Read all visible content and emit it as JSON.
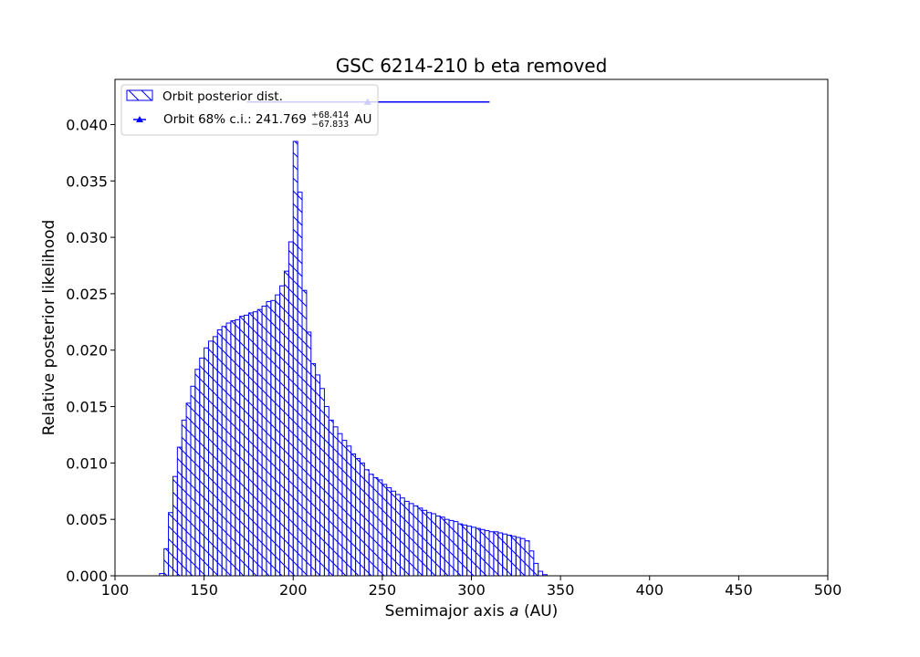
{
  "chart_data": {
    "type": "bar",
    "title": "GSC 6214-210 b eta removed",
    "xlabel_prefix": "Semimajor axis ",
    "xlabel_var": "a",
    "xlabel_suffix": " (AU)",
    "ylabel": "Relative posterior likelihood",
    "xlim": [
      100,
      500
    ],
    "ylim": [
      0,
      0.044
    ],
    "xticks": [
      100,
      150,
      200,
      250,
      300,
      350,
      400,
      450,
      500
    ],
    "xtick_labels": [
      "100",
      "150",
      "200",
      "250",
      "300",
      "350",
      "400",
      "450",
      "500"
    ],
    "yticks": [
      0,
      0.005,
      0.01,
      0.015,
      0.02,
      0.025,
      0.03,
      0.035,
      0.04
    ],
    "ytick_labels": [
      "0.000",
      "0.005",
      "0.010",
      "0.015",
      "0.020",
      "0.025",
      "0.030",
      "0.035",
      "0.040"
    ],
    "grid": false,
    "legend_position": "upper-left",
    "series": [
      {
        "name": "Orbit posterior dist.",
        "kind": "histogram",
        "color": "#0000ff",
        "hatch": "diagonal",
        "bin_start": 125,
        "bin_width": 2.5,
        "values": [
          0.0002,
          0.0024,
          0.0056,
          0.0088,
          0.0114,
          0.0138,
          0.0153,
          0.0168,
          0.0183,
          0.0193,
          0.0202,
          0.0208,
          0.0212,
          0.0218,
          0.0221,
          0.0224,
          0.0226,
          0.0227,
          0.023,
          0.0231,
          0.0233,
          0.0234,
          0.0236,
          0.0239,
          0.0243,
          0.0244,
          0.0249,
          0.0257,
          0.027,
          0.0296,
          0.0385,
          0.034,
          0.0253,
          0.0216,
          0.0188,
          0.0178,
          0.0166,
          0.015,
          0.0138,
          0.0132,
          0.0126,
          0.012,
          0.0115,
          0.0108,
          0.0104,
          0.01,
          0.0094,
          0.009,
          0.0087,
          0.0085,
          0.0081,
          0.0078,
          0.0075,
          0.0072,
          0.0069,
          0.0066,
          0.0064,
          0.0062,
          0.006,
          0.0058,
          0.0056,
          0.0055,
          0.0053,
          0.0052,
          0.005,
          0.0049,
          0.0048,
          0.0046,
          0.0045,
          0.0044,
          0.0043,
          0.0042,
          0.0041,
          0.004,
          0.0039,
          0.0039,
          0.0038,
          0.0037,
          0.0036,
          0.0035,
          0.0034,
          0.0033,
          0.0031,
          0.0022,
          0.0011,
          0.0004,
          0.0001
        ]
      },
      {
        "name": "Orbit 68% c.i.: 241.769",
        "kind": "errorbar",
        "color": "#0000ff",
        "x": 241.769,
        "y": 0.042,
        "xerr_minus": 67.833,
        "xerr_plus": 68.414,
        "label_plus": "+68.414",
        "label_minus": "−67.833",
        "label_unit": " AU"
      }
    ]
  }
}
